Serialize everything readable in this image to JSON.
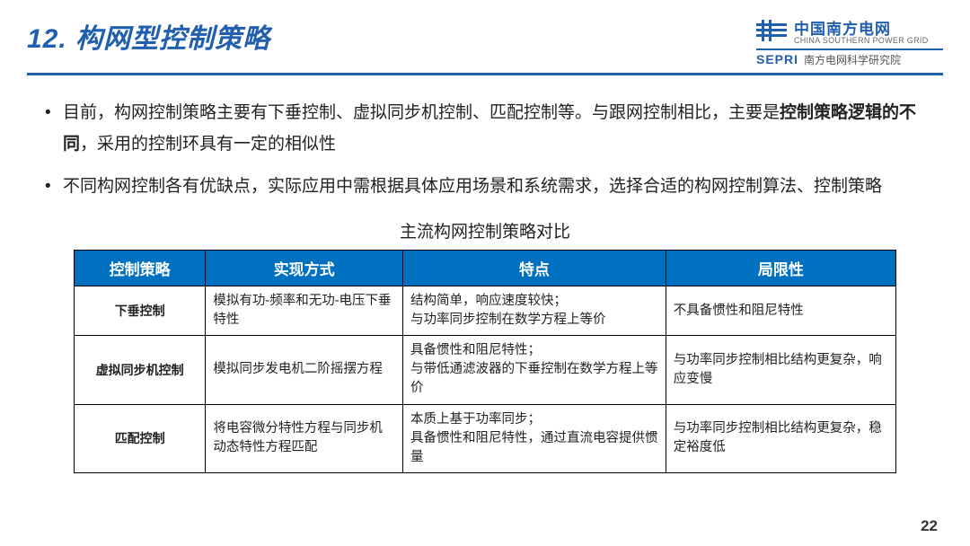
{
  "header": {
    "title": "12. 构网型控制策略",
    "logo_cn": "中国南方电网",
    "logo_en": "CHINA SOUTHERN POWER GRID",
    "sepri": "SEPRI",
    "sepri_cn": "南方电网科学研究院"
  },
  "bullets": [
    {
      "pre": "目前，构网控制策略主要有下垂控制、虚拟同步机控制、匹配控制等。与跟网控制相比，主要是",
      "bold": "控制策略逻辑的不同",
      "post": "，采用的控制环具有一定的相似性"
    },
    {
      "pre": "不同构网控制各有优缺点，实际应用中需根据具体应用场景和系统需求，选择合适的构网控制算法、控制策略",
      "bold": "",
      "post": ""
    }
  ],
  "table": {
    "caption": "主流构网控制策略对比",
    "columns": [
      "控制策略",
      "实现方式",
      "特点",
      "局限性"
    ],
    "col_widths": [
      "16%",
      "24%",
      "32%",
      "28%"
    ],
    "header_bg": "#0070c0",
    "header_fg": "#ffffff",
    "border_color": "#000000",
    "rows": [
      [
        "下垂控制",
        "模拟有功-频率和无功-电压下垂特性",
        "结构简单，响应速度较快；\n与功率同步控制在数学方程上等价",
        "不具备惯性和阻尼特性"
      ],
      [
        "虚拟同步机控制",
        "模拟同步发电机二阶摇摆方程",
        "具备惯性和阻尼特性；\n与带低通滤波器的下垂控制在数学方程上等价",
        "与功率同步控制相比结构更复杂，响应变慢"
      ],
      [
        "匹配控制",
        "将电容微分特性方程与同步机动态特性方程匹配",
        "本质上基于功率同步；\n具备惯性和阻尼特性，通过直流电容提供惯量",
        "与功率同步控制相比结构更复杂，稳定裕度低"
      ]
    ]
  },
  "page_number": "22",
  "colors": {
    "primary": "#1f5fad",
    "header_blue": "#0070c0",
    "text": "#222222",
    "background": "#ffffff"
  }
}
